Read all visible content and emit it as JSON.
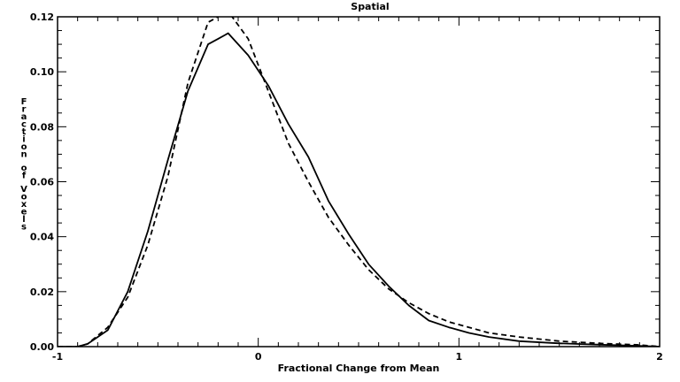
{
  "chart_data": {
    "type": "line",
    "title": "Spatial",
    "xlabel": "Fractional Change from Mean",
    "ylabel": "Fraction of Voxels",
    "xlim": [
      -1,
      2
    ],
    "ylim": [
      0,
      0.12
    ],
    "x_ticks": [
      -1,
      0,
      1,
      2
    ],
    "x_tick_labels": [
      "-1",
      "0",
      "1",
      "2"
    ],
    "y_ticks": [
      0,
      0.02,
      0.04,
      0.06,
      0.08,
      0.1,
      0.12
    ],
    "y_tick_labels": [
      "0.00",
      "0.02",
      "0.04",
      "0.06",
      "0.08",
      "0.10",
      "0.12"
    ],
    "grid": false,
    "series": [
      {
        "style": "solid",
        "color": "#000000",
        "x": [
          -1.0,
          -0.9,
          -0.85,
          -0.75,
          -0.65,
          -0.55,
          -0.45,
          -0.35,
          -0.25,
          -0.2,
          -0.15,
          -0.05,
          0.05,
          0.15,
          0.25,
          0.35,
          0.45,
          0.55,
          0.65,
          0.75,
          0.85,
          0.95,
          1.05,
          1.15,
          1.3,
          1.5,
          1.7,
          1.9,
          2.0
        ],
        "y": [
          0.0,
          0.0,
          0.001,
          0.006,
          0.02,
          0.042,
          0.068,
          0.093,
          0.11,
          0.112,
          0.114,
          0.106,
          0.095,
          0.081,
          0.069,
          0.053,
          0.041,
          0.03,
          0.022,
          0.015,
          0.0095,
          0.007,
          0.005,
          0.0035,
          0.002,
          0.0012,
          0.0007,
          0.0003,
          0.0
        ]
      },
      {
        "style": "dashed",
        "color": "#000000",
        "x": [
          -1.0,
          -0.9,
          -0.85,
          -0.75,
          -0.65,
          -0.55,
          -0.45,
          -0.35,
          -0.25,
          -0.15,
          -0.05,
          0.05,
          0.15,
          0.25,
          0.35,
          0.45,
          0.55,
          0.65,
          0.75,
          0.85,
          0.95,
          1.05,
          1.15,
          1.3,
          1.5,
          1.7,
          1.9,
          2.0
        ],
        "y": [
          0.0,
          0.0,
          0.001,
          0.007,
          0.018,
          0.037,
          0.062,
          0.096,
          0.118,
          0.122,
          0.112,
          0.093,
          0.074,
          0.06,
          0.047,
          0.037,
          0.028,
          0.021,
          0.016,
          0.012,
          0.009,
          0.007,
          0.005,
          0.0035,
          0.002,
          0.0012,
          0.0006,
          0.0
        ]
      }
    ]
  }
}
